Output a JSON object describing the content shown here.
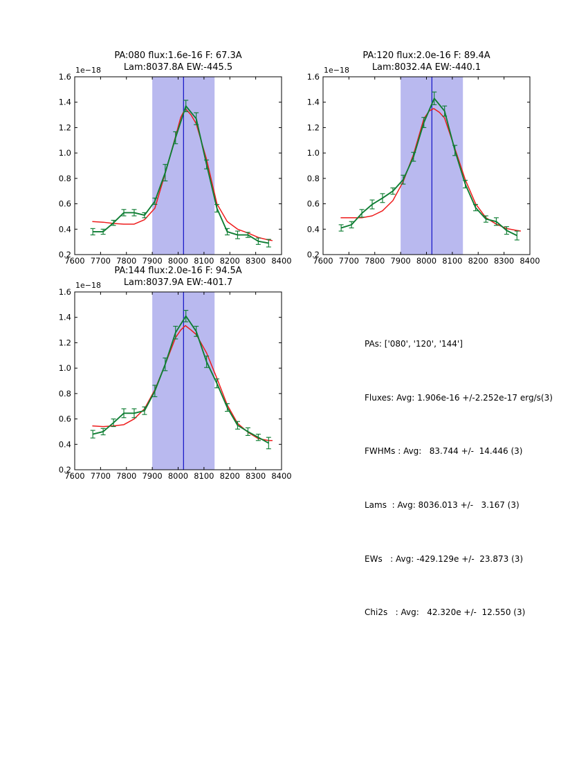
{
  "colors": {
    "data_line": "#0e7d33",
    "fit_line": "#ee1b1b",
    "band_fill": "#b9b9ef",
    "vline": "#1c1cc8",
    "frame": "#000000",
    "background": "#ffffff"
  },
  "chart_data": [
    {
      "type": "line",
      "title": "PA:080 flux:1.6e-16 F: 67.3A",
      "subtitle": "Lam:8037.8A EW:-445.5",
      "y_offset_label": "1e−18",
      "xlim": [
        7600,
        8400
      ],
      "ylim": [
        0.2,
        1.6
      ],
      "xticks": [
        7600,
        7700,
        7800,
        7900,
        8000,
        8100,
        8200,
        8300,
        8400
      ],
      "yticks": [
        0.2,
        0.4,
        0.6,
        0.8,
        1.0,
        1.2,
        1.4,
        1.6
      ],
      "band": [
        7900,
        8141
      ],
      "vline": 8021,
      "x": [
        7670,
        7710,
        7750,
        7790,
        7830,
        7870,
        7910,
        7950,
        7990,
        8030,
        8070,
        8110,
        8150,
        8190,
        8230,
        8270,
        8310,
        8350
      ],
      "series": [
        {
          "name": "spectrum-data",
          "color": "#0e7d33",
          "values": [
            0.38,
            0.38,
            0.45,
            0.53,
            0.53,
            0.51,
            0.62,
            0.845,
            1.12,
            1.37,
            1.27,
            0.91,
            0.565,
            0.38,
            0.355,
            0.355,
            0.305,
            0.29
          ],
          "errors": [
            0.025,
            0.02,
            0.02,
            0.025,
            0.025,
            0.02,
            0.025,
            0.065,
            0.047,
            0.045,
            0.047,
            0.035,
            0.03,
            0.025,
            0.03,
            0.02,
            0.025,
            0.03
          ]
        },
        {
          "name": "gaussian-fit",
          "color": "#ee1b1b",
          "x": [
            7668,
            7710,
            7750,
            7790,
            7830,
            7870,
            7910,
            7950,
            7990,
            8010,
            8028,
            8050,
            8070,
            8110,
            8150,
            8190,
            8230,
            8270,
            8310,
            8350,
            8365
          ],
          "values": [
            0.46,
            0.455,
            0.445,
            0.44,
            0.44,
            0.475,
            0.565,
            0.84,
            1.13,
            1.28,
            1.35,
            1.3,
            1.23,
            0.95,
            0.6,
            0.46,
            0.4,
            0.37,
            0.335,
            0.315,
            0.31
          ]
        }
      ]
    },
    {
      "type": "line",
      "title": "PA:120 flux:2.0e-16 F: 89.4A",
      "subtitle": "Lam:8032.4A EW:-440.1",
      "y_offset_label": "1e−18",
      "xlim": [
        7600,
        8400
      ],
      "ylim": [
        0.2,
        1.6
      ],
      "xticks": [
        7600,
        7700,
        7800,
        7900,
        8000,
        8100,
        8200,
        8300,
        8400
      ],
      "yticks": [
        0.2,
        0.4,
        0.6,
        0.8,
        1.0,
        1.2,
        1.4,
        1.6
      ],
      "band": [
        7900,
        8141
      ],
      "vline": 8021,
      "x": [
        7670,
        7710,
        7750,
        7790,
        7830,
        7870,
        7910,
        7950,
        7990,
        8030,
        8070,
        8110,
        8150,
        8190,
        8230,
        8270,
        8310,
        8350
      ],
      "series": [
        {
          "name": "spectrum-data",
          "color": "#0e7d33",
          "values": [
            0.41,
            0.435,
            0.525,
            0.595,
            0.645,
            0.7,
            0.79,
            0.97,
            1.24,
            1.43,
            1.33,
            1.02,
            0.755,
            0.57,
            0.48,
            0.46,
            0.39,
            0.35
          ],
          "errors": [
            0.025,
            0.025,
            0.03,
            0.035,
            0.035,
            0.025,
            0.035,
            0.035,
            0.04,
            0.05,
            0.04,
            0.04,
            0.03,
            0.025,
            0.025,
            0.03,
            0.03,
            0.035
          ]
        },
        {
          "name": "gaussian-fit",
          "color": "#ee1b1b",
          "x": [
            7668,
            7710,
            7750,
            7790,
            7830,
            7870,
            7910,
            7950,
            7990,
            8010,
            8028,
            8050,
            8070,
            8110,
            8150,
            8190,
            8230,
            8270,
            8310,
            8350,
            8365
          ],
          "values": [
            0.49,
            0.49,
            0.49,
            0.505,
            0.545,
            0.625,
            0.775,
            0.99,
            1.27,
            1.33,
            1.35,
            1.32,
            1.275,
            1.035,
            0.79,
            0.6,
            0.49,
            0.44,
            0.405,
            0.39,
            0.385
          ]
        }
      ]
    },
    {
      "type": "line",
      "title": "PA:144 flux:2.0e-16 F: 94.5A",
      "subtitle": "Lam:8037.9A EW:-401.7",
      "y_offset_label": "1e−18",
      "xlim": [
        7600,
        8400
      ],
      "ylim": [
        0.2,
        1.6
      ],
      "xticks": [
        7600,
        7700,
        7800,
        7900,
        8000,
        8100,
        8200,
        8300,
        8400
      ],
      "yticks": [
        0.2,
        0.4,
        0.6,
        0.8,
        1.0,
        1.2,
        1.4,
        1.6
      ],
      "band": [
        7900,
        8141
      ],
      "vline": 8021,
      "x": [
        7670,
        7710,
        7750,
        7790,
        7830,
        7870,
        7910,
        7950,
        7990,
        8030,
        8070,
        8110,
        8150,
        8190,
        8230,
        8270,
        8310,
        8350
      ],
      "series": [
        {
          "name": "spectrum-data",
          "color": "#0e7d33",
          "values": [
            0.48,
            0.5,
            0.57,
            0.645,
            0.645,
            0.665,
            0.82,
            1.03,
            1.28,
            1.41,
            1.29,
            1.05,
            0.88,
            0.69,
            0.55,
            0.5,
            0.455,
            0.41
          ],
          "errors": [
            0.03,
            0.025,
            0.03,
            0.035,
            0.035,
            0.03,
            0.045,
            0.05,
            0.05,
            0.045,
            0.04,
            0.045,
            0.035,
            0.03,
            0.03,
            0.03,
            0.025,
            0.045
          ]
        },
        {
          "name": "gaussian-fit",
          "color": "#ee1b1b",
          "x": [
            7668,
            7710,
            7750,
            7790,
            7830,
            7870,
            7910,
            7950,
            7990,
            8010,
            8028,
            8050,
            8070,
            8110,
            8150,
            8190,
            8230,
            8270,
            8310,
            8350,
            8365
          ],
          "values": [
            0.545,
            0.54,
            0.545,
            0.555,
            0.6,
            0.68,
            0.83,
            1.03,
            1.24,
            1.3,
            1.335,
            1.3,
            1.265,
            1.12,
            0.92,
            0.71,
            0.565,
            0.495,
            0.445,
            0.43,
            0.43
          ]
        }
      ]
    }
  ],
  "stats": {
    "lines": [
      "PAs: ['080', '120', '144']",
      "Fluxes: Avg: 1.906e-16 +/-2.252e-17 erg/s(3)",
      "FWHMs : Avg:   83.744 +/-  14.446 (3)",
      "Lams  : Avg: 8036.013 +/-   3.167 (3)",
      "EWs   : Avg: -429.129e +/-  23.873 (3)",
      "Chi2s   : Avg:   42.320e +/-  12.550 (3)"
    ]
  }
}
